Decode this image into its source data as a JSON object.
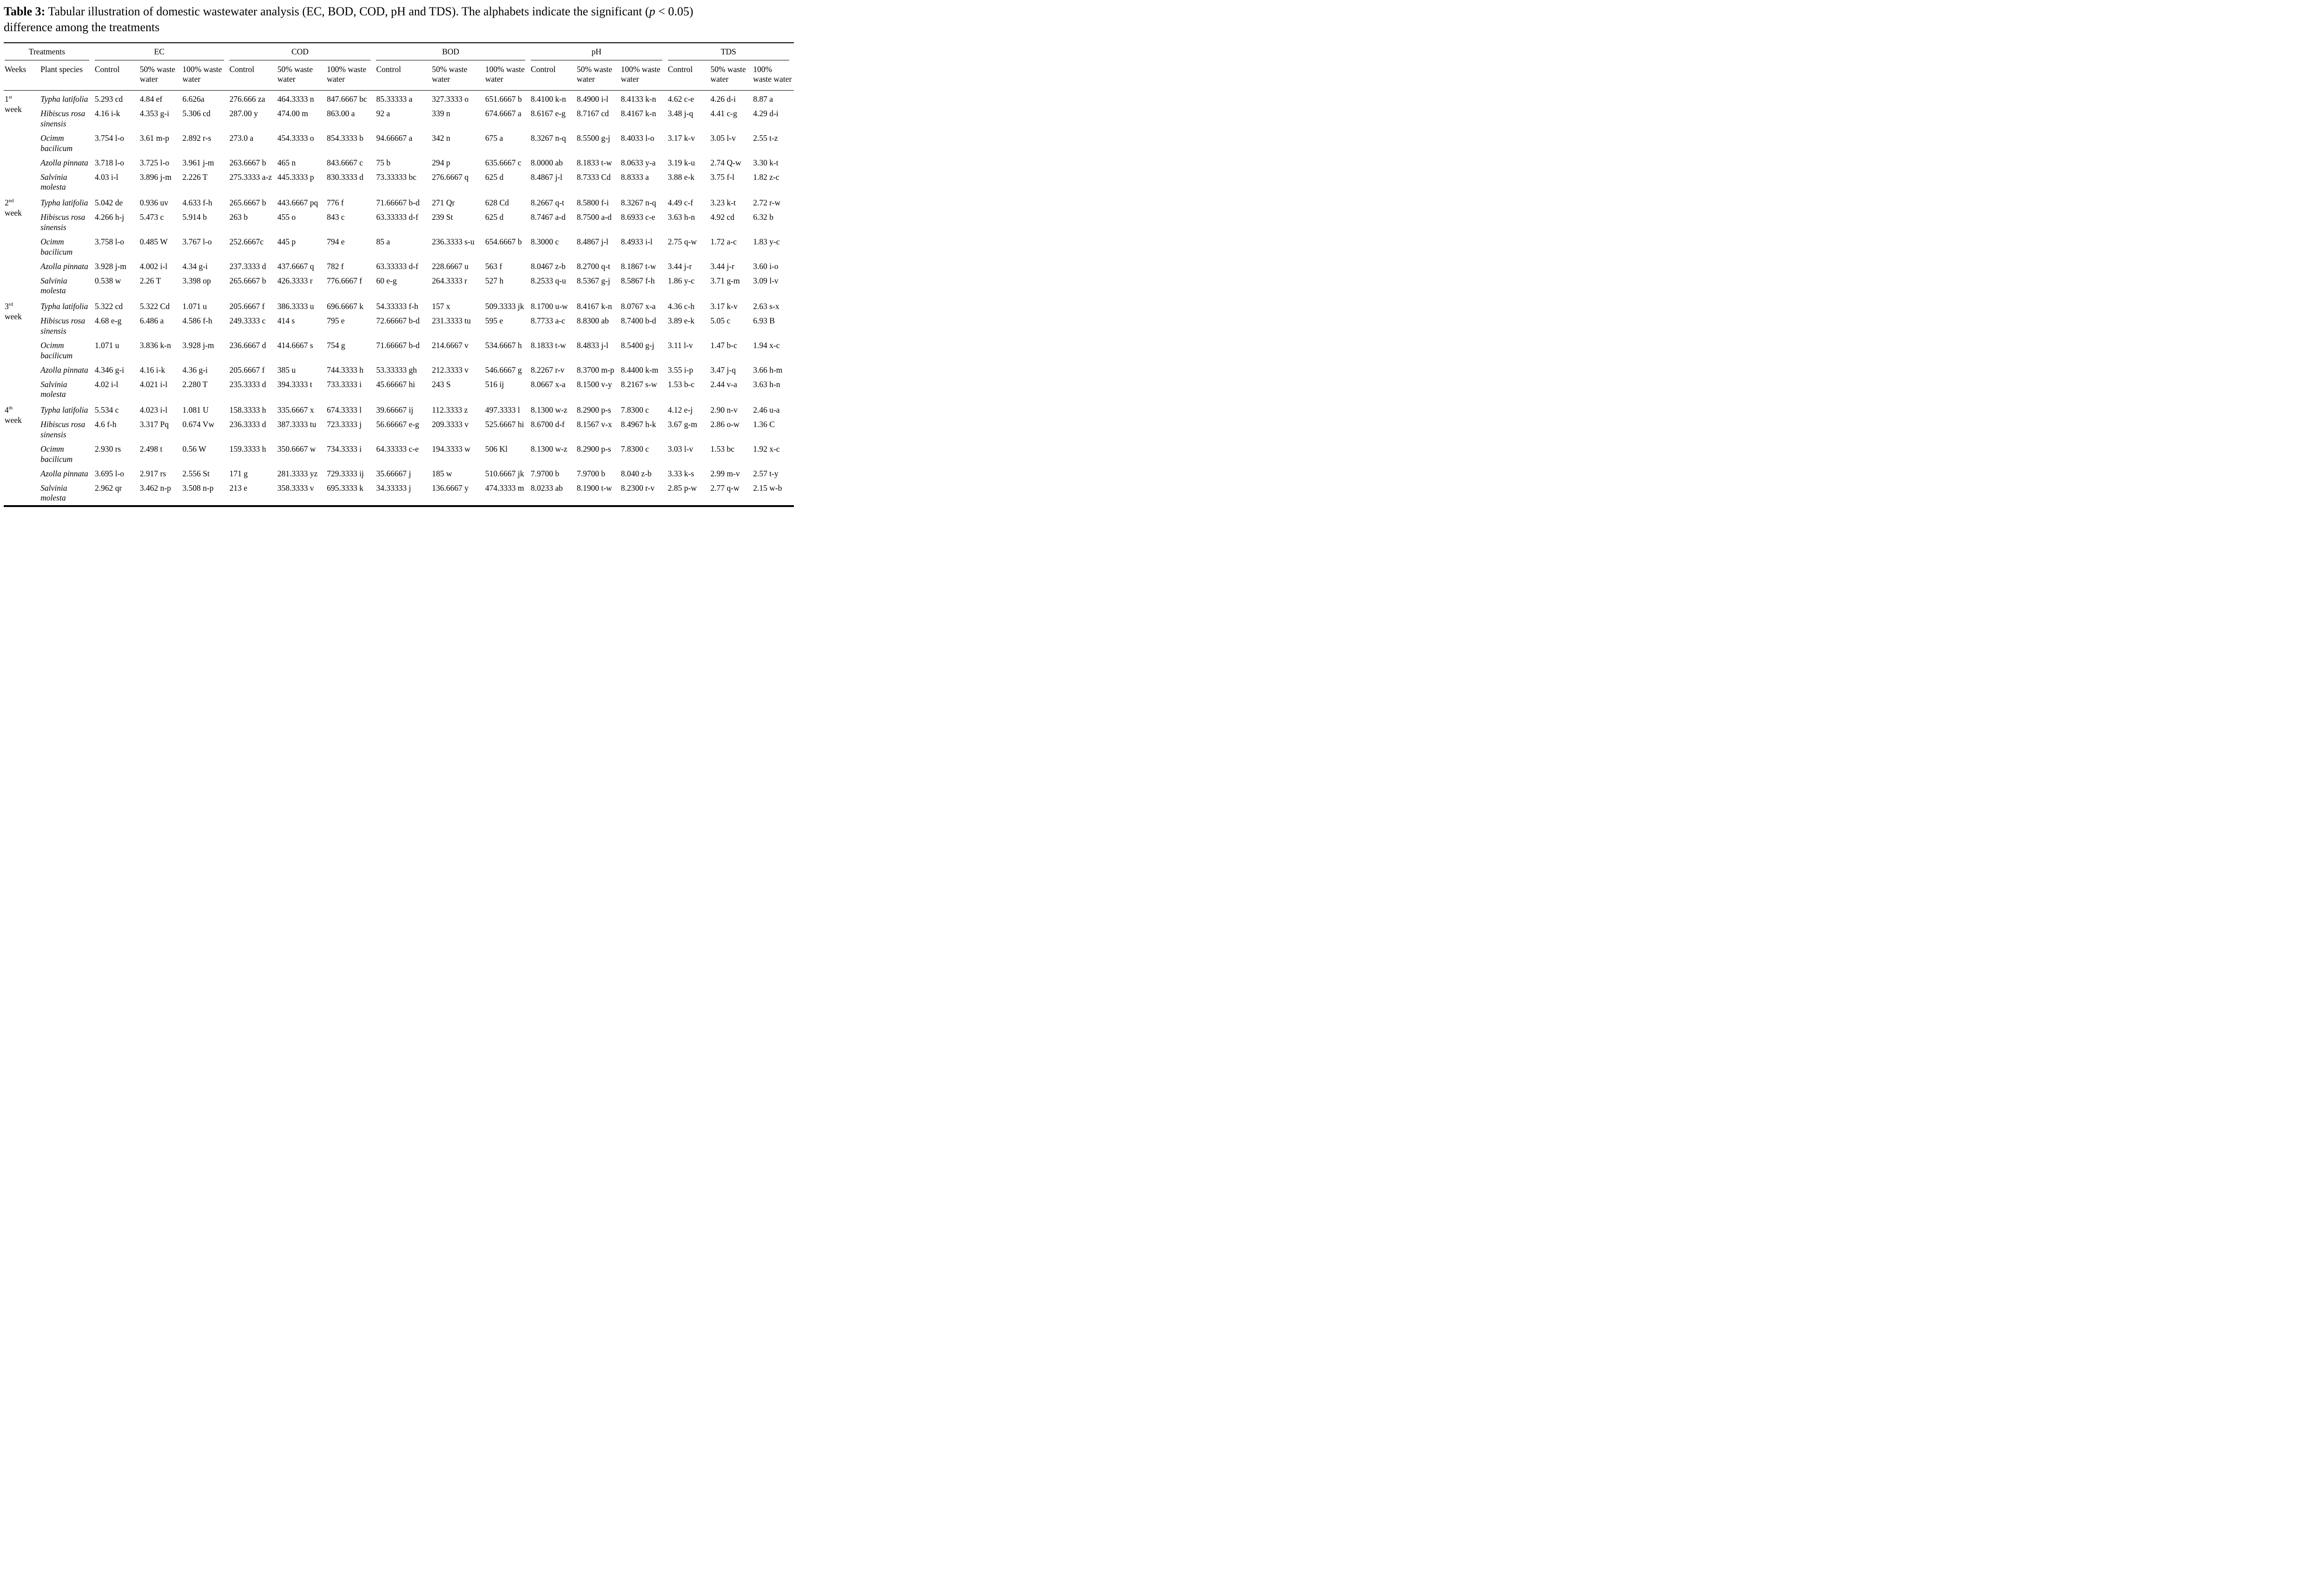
{
  "caption": {
    "label": "Table 3:",
    "text_before_p": " Tabular illustration of domestic wastewater analysis (EC, BOD, COD, pH and TDS). The alphabets indicate the significant (",
    "p": "p",
    "text_after_p": " < 0.05)",
    "line2": "difference among the treatments"
  },
  "header": {
    "treatments_label": "Treatments",
    "weeks_label": "Weeks",
    "species_label": "Plant species",
    "group_labels": [
      "EC",
      "COD",
      "BOD",
      "pH",
      "TDS"
    ],
    "sub_labels": [
      "Control",
      "50% waste water",
      "100% waste water"
    ]
  },
  "table": {
    "weeks": [
      {
        "label_num": "1",
        "label_suffix": "st",
        "label_word": "week",
        "rows": [
          {
            "species": "Typha latifolia",
            "values": [
              "5.293 cd",
              "4.84 ef",
              "6.626a",
              "276.666 za",
              "464.3333 n",
              "847.6667 bc",
              "85.33333 a",
              "327.3333 o",
              "651.6667 b",
              "8.4100 k-n",
              "8.4900 i-l",
              "8.4133 k-n",
              "4.62 c-e",
              "4.26 d-i",
              "8.87 a"
            ]
          },
          {
            "species": "Hibiscus rosa sinensis",
            "values": [
              "4.16 i-k",
              "4.353 g-i",
              "5.306 cd",
              "287.00 y",
              "474.00 m",
              "863.00 a",
              "92 a",
              "339 n",
              "674.6667 a",
              "8.6167 e-g",
              "8.7167 cd",
              "8.4167 k-n",
              "3.48 j-q",
              "4.41 c-g",
              "4.29 d-i"
            ]
          },
          {
            "species": "Ocimm bacilicum",
            "values": [
              "3.754 l-o",
              "3.61 m-p",
              "2.892 r-s",
              "273.0 a",
              "454.3333 o",
              "854.3333 b",
              "94.66667 a",
              "342 n",
              "675 a",
              "8.3267 n-q",
              "8.5500 g-j",
              "8.4033 l-o",
              "3.17 k-v",
              "3.05 l-v",
              "2.55 t-z"
            ]
          },
          {
            "species": "Azolla pinnata",
            "values": [
              "3.718 l-o",
              "3.725 l-o",
              "3.961 j-m",
              "263.6667 b",
              "465 n",
              "843.6667 c",
              "75 b",
              "294 p",
              "635.6667 c",
              "8.0000 ab",
              "8.1833 t-w",
              "8.0633 y-a",
              "3.19 k-u",
              "2.74 Q-w",
              "3.30 k-t"
            ]
          },
          {
            "species": "Salvinia molesta",
            "values": [
              "4.03 i-l",
              "3.896 j-m",
              "2.226 T",
              "275.3333 a-z",
              "445.3333 p",
              "830.3333 d",
              "73.33333 bc",
              "276.6667 q",
              "625 d",
              "8.4867 j-l",
              "8.7333 Cd",
              "8.8333 a",
              "3.88 e-k",
              "3.75 f-l",
              "1.82 z-c"
            ]
          }
        ]
      },
      {
        "label_num": "2",
        "label_suffix": "nd",
        "label_word": "week",
        "rows": [
          {
            "species": "Typha latifolia",
            "values": [
              "5.042 de",
              "0.936 uv",
              "4.633 f-h",
              "265.6667 b",
              "443.6667 pq",
              "776 f",
              "71.66667 b-d",
              "271 Qr",
              "628 Cd",
              "8.2667 q-t",
              "8.5800 f-i",
              "8.3267 n-q",
              "4.49 c-f",
              "3.23 k-t",
              "2.72 r-w"
            ]
          },
          {
            "species": "Hibiscus rosa sinensis",
            "values": [
              "4.266 h-j",
              "5.473 c",
              "5.914 b",
              "263 b",
              "455 o",
              "843 c",
              "63.33333 d-f",
              "239 St",
              "625 d",
              "8.7467 a-d",
              "8.7500 a-d",
              "8.6933 c-e",
              "3.63 h-n",
              "4.92 cd",
              "6.32 b"
            ]
          },
          {
            "species": "Ocimm bacilicum",
            "values": [
              "3.758 l-o",
              "0.485 W",
              "3.767 l-o",
              "252.6667c",
              "445 p",
              "794 e",
              "85 a",
              "236.3333 s-u",
              "654.6667 b",
              "8.3000 c",
              "8.4867 j-l",
              "8.4933 i-l",
              "2.75 q-w",
              "1.72 a-c",
              "1.83 y-c"
            ]
          },
          {
            "species": "Azolla pinnata",
            "values": [
              "3.928 j-m",
              "4.002 i-l",
              "4.34 g-i",
              "237.3333 d",
              "437.6667 q",
              "782 f",
              "63.33333 d-f",
              "228.6667 u",
              "563 f",
              "8.0467 z-b",
              "8.2700 q-t",
              "8.1867 t-w",
              "3.44 j-r",
              "3.44 j-r",
              "3.60 i-o"
            ]
          },
          {
            "species": "Salvinia molesta",
            "values": [
              "0.538 w",
              "2.26 T",
              "3.398 op",
              "265.6667 b",
              "426.3333 r",
              "776.6667 f",
              "60 e-g",
              "264.3333 r",
              "527 h",
              "8.2533 q-u",
              "8.5367 g-j",
              "8.5867 f-h",
              "1.86 y-c",
              "3.71 g-m",
              "3.09 l-v"
            ]
          }
        ]
      },
      {
        "label_num": "3",
        "label_suffix": "rd",
        "label_word": "week",
        "rows": [
          {
            "species": "Typha latifolia",
            "values": [
              "5.322 cd",
              "5.322 Cd",
              "1.071 u",
              "205.6667 f",
              "386.3333 u",
              "696.6667 k",
              "54.33333 f-h",
              "157 x",
              "509.3333 jk",
              "8.1700 u-w",
              "8.4167 k-n",
              "8.0767 x-a",
              "4.36 c-h",
              "3.17 k-v",
              "2.63 s-x"
            ]
          },
          {
            "species": "Hibiscus rosa sinensis",
            "values": [
              "4.68 e-g",
              "6.486 a",
              "4.586 f-h",
              "249.3333 c",
              "414 s",
              "795 e",
              "72.66667 b-d",
              "231.3333 tu",
              "595 e",
              "8.7733 a-c",
              "8.8300 ab",
              "8.7400 b-d",
              "3.89 e-k",
              "5.05 c",
              "6.93 B"
            ]
          },
          {
            "species": "Ocimm bacilicum",
            "values": [
              "1.071 u",
              "3.836 k-n",
              "3.928 j-m",
              "236.6667 d",
              "414.6667 s",
              "754 g",
              "71.66667 b-d",
              "214.6667 v",
              "534.6667 h",
              "8.1833 t-w",
              "8.4833 j-l",
              "8.5400 g-j",
              "3.11 l-v",
              "1.47 b-c",
              "1.94 x-c"
            ]
          },
          {
            "species": "Azolla pinnata",
            "values": [
              "4.346 g-i",
              "4.16 i-k",
              "4.36 g-i",
              "205.6667 f",
              "385 u",
              "744.3333 h",
              "53.33333 gh",
              "212.3333 v",
              "546.6667 g",
              "8.2267 r-v",
              "8.3700 m-p",
              "8.4400 k-m",
              "3.55 i-p",
              "3.47 j-q",
              "3.66 h-m"
            ]
          },
          {
            "species": "Salvinia molesta",
            "values": [
              "4.02 i-l",
              "4.021 i-l",
              "2.280 T",
              "235.3333 d",
              "394.3333 t",
              "733.3333 i",
              "45.66667 hi",
              "243 S",
              "516 ij",
              "8.0667 x-a",
              "8.1500 v-y",
              "8.2167 s-w",
              "1.53 b-c",
              "2.44 v-a",
              "3.63 h-n"
            ]
          }
        ]
      },
      {
        "label_num": "4",
        "label_suffix": "th",
        "label_word": "week",
        "rows": [
          {
            "species": "Typha latifolia",
            "values": [
              "5.534 c",
              "4.023 i-l",
              "1.081 U",
              "158.3333 h",
              "335.6667 x",
              "674.3333 l",
              "39.66667 ij",
              "112.3333 z",
              "497.3333 l",
              "8.1300 w-z",
              "8.2900 p-s",
              "7.8300 c",
              "4.12 e-j",
              "2.90 n-v",
              "2.46 u-a"
            ]
          },
          {
            "species": "Hibiscus rosa sinensis",
            "values": [
              "4.6 f-h",
              "3.317 Pq",
              "0.674 Vw",
              "236.3333 d",
              "387.3333 tu",
              "723.3333 j",
              "56.66667 e-g",
              "209.3333 v",
              "525.6667 hi",
              "8.6700 d-f",
              "8.1567 v-x",
              "8.4967 h-k",
              "3.67 g-m",
              "2.86 o-w",
              "1.36 C"
            ]
          },
          {
            "species": "Ocimm bacilicum",
            "values": [
              "2.930 rs",
              "2.498 t",
              "0.56 W",
              "159.3333 h",
              "350.6667 w",
              "734.3333 i",
              "64.33333 c-e",
              "194.3333 w",
              "506 Kl",
              "8.1300 w-z",
              "8.2900 p-s",
              "7.8300 c",
              "3.03 l-v",
              "1.53 bc",
              "1.92 x-c"
            ]
          },
          {
            "species": "Azolla pinnata",
            "values": [
              "3.695 l-o",
              "2.917 rs",
              "2.556 St",
              "171 g",
              "281.3333 yz",
              "729.3333 ij",
              "35.66667 j",
              "185 w",
              "510.6667 jk",
              "7.9700 b",
              "7.9700 b",
              "8.040 z-b",
              "3.33 k-s",
              "2.99 m-v",
              "2.57 t-y"
            ]
          },
          {
            "species": "Salvinia molesta",
            "values": [
              "2.962 qr",
              "3.462 n-p",
              "3.508 n-p",
              "213 e",
              "358.3333 v",
              "695.3333 k",
              "34.33333 j",
              "136.6667 y",
              "474.3333 m",
              "8.0233 ab",
              "8.1900 t-w",
              "8.2300 r-v",
              "2.85 p-w",
              "2.77 q-w",
              "2.15 w-b"
            ]
          }
        ]
      }
    ]
  }
}
